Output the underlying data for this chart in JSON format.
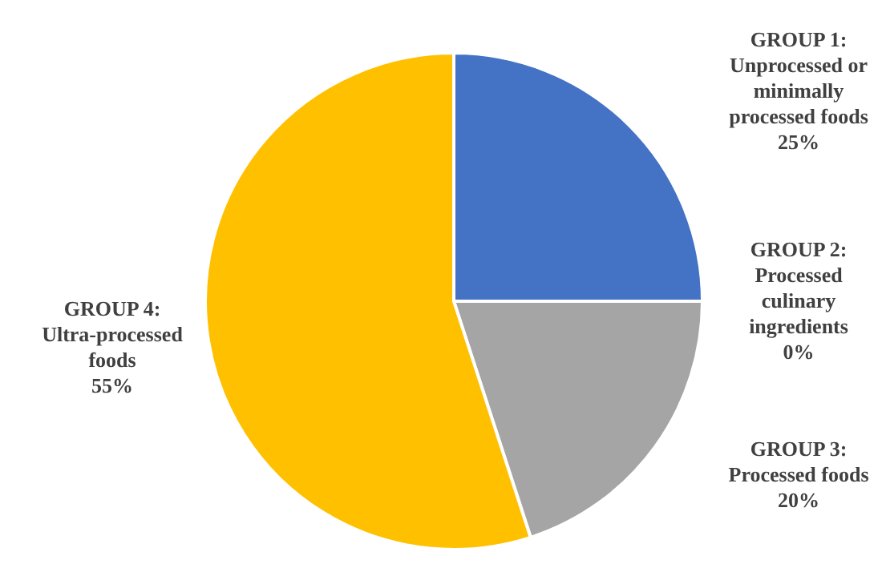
{
  "chart_data": {
    "type": "pie",
    "categories": [
      "GROUP 1:\nUnprocessed or\nminimally\nprocessed foods",
      "GROUP 2:\nProcessed\nculinary\ningredients",
      "GROUP 3:\nProcessed foods",
      "GROUP 4:\nUltra-processed\nfoods"
    ],
    "values": [
      25,
      0,
      20,
      55
    ],
    "value_labels": [
      "25%",
      "0%",
      "20%",
      "55%"
    ],
    "colors": [
      "#4472c4",
      "#ed7d31",
      "#a5a5a5",
      "#ffc000"
    ]
  }
}
